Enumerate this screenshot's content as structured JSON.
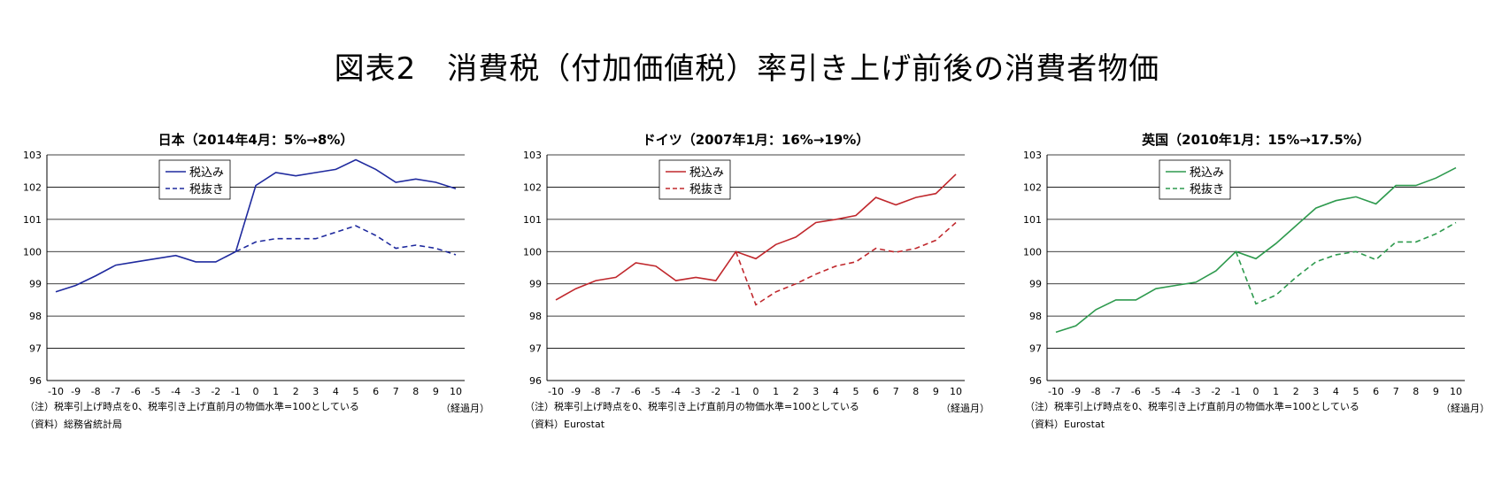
{
  "title": "図表2　消費税（付加価値税）率引き上げ前後の消費者物価",
  "chart_data": [
    {
      "type": "line",
      "title": "日本（2014年4月：5%→8%）",
      "x": [
        -10,
        -9,
        -8,
        -7,
        -6,
        -5,
        -4,
        -3,
        -2,
        -1,
        0,
        1,
        2,
        3,
        4,
        5,
        6,
        7,
        8,
        9,
        10
      ],
      "ylim": [
        96,
        103
      ],
      "yticks": [
        96,
        97,
        98,
        99,
        100,
        101,
        102,
        103
      ],
      "grid": true,
      "legend": "top-center",
      "color": "#1f2a9e",
      "series": [
        {
          "name": "税込み",
          "style": "solid",
          "values": [
            98.75,
            98.95,
            99.25,
            99.58,
            99.68,
            99.78,
            99.88,
            99.68,
            99.68,
            100.0,
            102.05,
            102.45,
            102.35,
            102.45,
            102.55,
            102.85,
            102.55,
            102.15,
            102.25,
            102.15,
            101.95
          ]
        },
        {
          "name": "税抜き",
          "style": "dashed",
          "values": [
            null,
            null,
            null,
            null,
            null,
            null,
            null,
            null,
            null,
            100.0,
            100.3,
            100.4,
            100.4,
            100.4,
            100.6,
            100.8,
            100.5,
            100.1,
            100.2,
            100.1,
            99.9
          ]
        }
      ],
      "xlabel": "（経過月）",
      "note": "（注）税率引上げ時点を0、税率引き上げ直前月の物価水準=100としている",
      "source": "（資料）総務省統計局"
    },
    {
      "type": "line",
      "title": "ドイツ（2007年1月：16%→19%）",
      "x": [
        -10,
        -9,
        -8,
        -7,
        -6,
        -5,
        -4,
        -3,
        -2,
        -1,
        0,
        1,
        2,
        3,
        4,
        5,
        6,
        7,
        8,
        9,
        10
      ],
      "ylim": [
        96,
        103
      ],
      "yticks": [
        96,
        97,
        98,
        99,
        100,
        101,
        102,
        103
      ],
      "grid": true,
      "legend": "top-center",
      "color": "#c0282d",
      "series": [
        {
          "name": "税込み",
          "style": "solid",
          "values": [
            98.5,
            98.85,
            99.1,
            99.2,
            99.65,
            99.55,
            99.1,
            99.2,
            99.1,
            100.0,
            99.78,
            100.22,
            100.45,
            100.9,
            101.0,
            101.12,
            101.68,
            101.45,
            101.68,
            101.8,
            102.4
          ]
        },
        {
          "name": "税抜き",
          "style": "dashed",
          "values": [
            null,
            null,
            null,
            null,
            null,
            null,
            null,
            null,
            null,
            100.0,
            98.35,
            98.75,
            99.0,
            99.3,
            99.55,
            99.68,
            100.1,
            99.98,
            100.1,
            100.35,
            100.9
          ]
        }
      ],
      "xlabel": "（経過月）",
      "note": "（注）税率引上げ時点を0、税率引き上げ直前月の物価水準=100としている",
      "source": "（資料）Eurostat"
    },
    {
      "type": "line",
      "title": "英国（2010年1月：15%→17.5%）",
      "x": [
        -10,
        -9,
        -8,
        -7,
        -6,
        -5,
        -4,
        -3,
        -2,
        -1,
        0,
        1,
        2,
        3,
        4,
        5,
        6,
        7,
        8,
        9,
        10
      ],
      "ylim": [
        96,
        103
      ],
      "yticks": [
        96,
        97,
        98,
        99,
        100,
        101,
        102,
        103
      ],
      "grid": true,
      "legend": "top-center",
      "color": "#2e9a4e",
      "series": [
        {
          "name": "税込み",
          "style": "solid",
          "values": [
            97.5,
            97.7,
            98.2,
            98.5,
            98.5,
            98.85,
            98.95,
            99.05,
            99.4,
            100.0,
            99.78,
            100.25,
            100.8,
            101.35,
            101.58,
            101.7,
            101.48,
            102.05,
            102.05,
            102.28,
            102.6
          ]
        },
        {
          "name": "税抜き",
          "style": "dashed",
          "values": [
            null,
            null,
            null,
            null,
            null,
            null,
            null,
            null,
            null,
            100.0,
            98.38,
            98.65,
            99.2,
            99.68,
            99.9,
            100.0,
            99.75,
            100.3,
            100.3,
            100.55,
            100.9
          ]
        }
      ],
      "xlabel": "（経過月）",
      "note": "（注）税率引上げ時点を0、税率引き上げ直前月の物価水準=100としている",
      "source": "（資料）Eurostat"
    }
  ]
}
